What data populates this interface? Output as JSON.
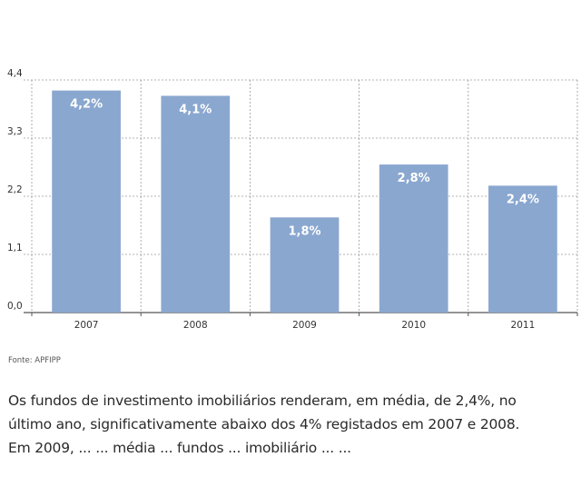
{
  "chart_data": {
    "type": "bar",
    "categories": [
      "2007",
      "2008",
      "2009",
      "2010",
      "2011"
    ],
    "values": [
      4.2,
      4.1,
      1.8,
      2.8,
      2.4
    ],
    "data_labels": [
      "4,2%",
      "4,1%",
      "1,8%",
      "2,8%",
      "2,4%"
    ],
    "yticks": [
      0.0,
      1.1,
      2.2,
      3.3,
      4.4
    ],
    "ytick_labels": [
      "0,0",
      "1,1",
      "2,2",
      "3,3",
      "4,4"
    ],
    "ylim": [
      0,
      4.4
    ],
    "title": "",
    "xlabel": "",
    "ylabel": "",
    "grid": true
  },
  "colors": {
    "bar": "#8aa7cf",
    "grid": "#9a9a9a",
    "text": "#2a2a2a"
  },
  "source": "Fonte: APFIPP",
  "caption": {
    "line1": "Os fundos de investimento imobiliários renderam, em média, de 2,4%, no",
    "line2": "último ano, significativamente abaixo dos 4% registados em 2007 e 2008.",
    "line3": "Em 2009, ... ... média ... fundos ... imobiliário ... ..."
  }
}
